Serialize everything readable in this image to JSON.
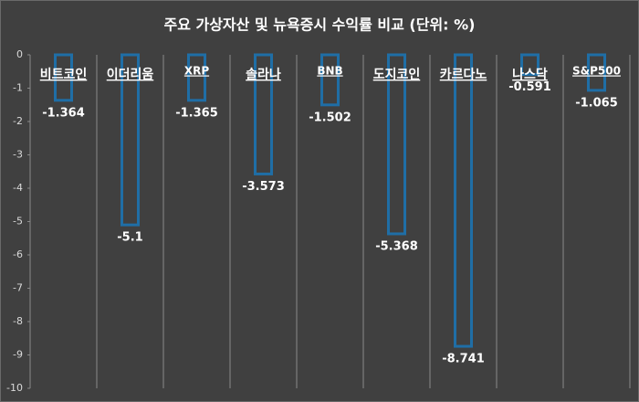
{
  "chart_data": {
    "type": "bar",
    "title": "주요 가상자산 및 뉴욕증시 수익률 비교 (단위: %)",
    "categories": [
      "비트코인",
      "이더리움",
      "XRP",
      "솔라나",
      "BNB",
      "도지코인",
      "카르다노",
      "나스닥",
      "S&P500"
    ],
    "values": [
      -1.364,
      -5.1,
      -1.365,
      -3.573,
      -1.502,
      -5.368,
      -8.741,
      -0.591,
      -1.065
    ],
    "color": "#1f6ea6",
    "ylim": [
      0,
      -10
    ],
    "yticks": [
      0,
      -1,
      -2,
      -3,
      -4,
      -5,
      -6,
      -7,
      -8,
      -9,
      -10
    ],
    "grid": true
  }
}
